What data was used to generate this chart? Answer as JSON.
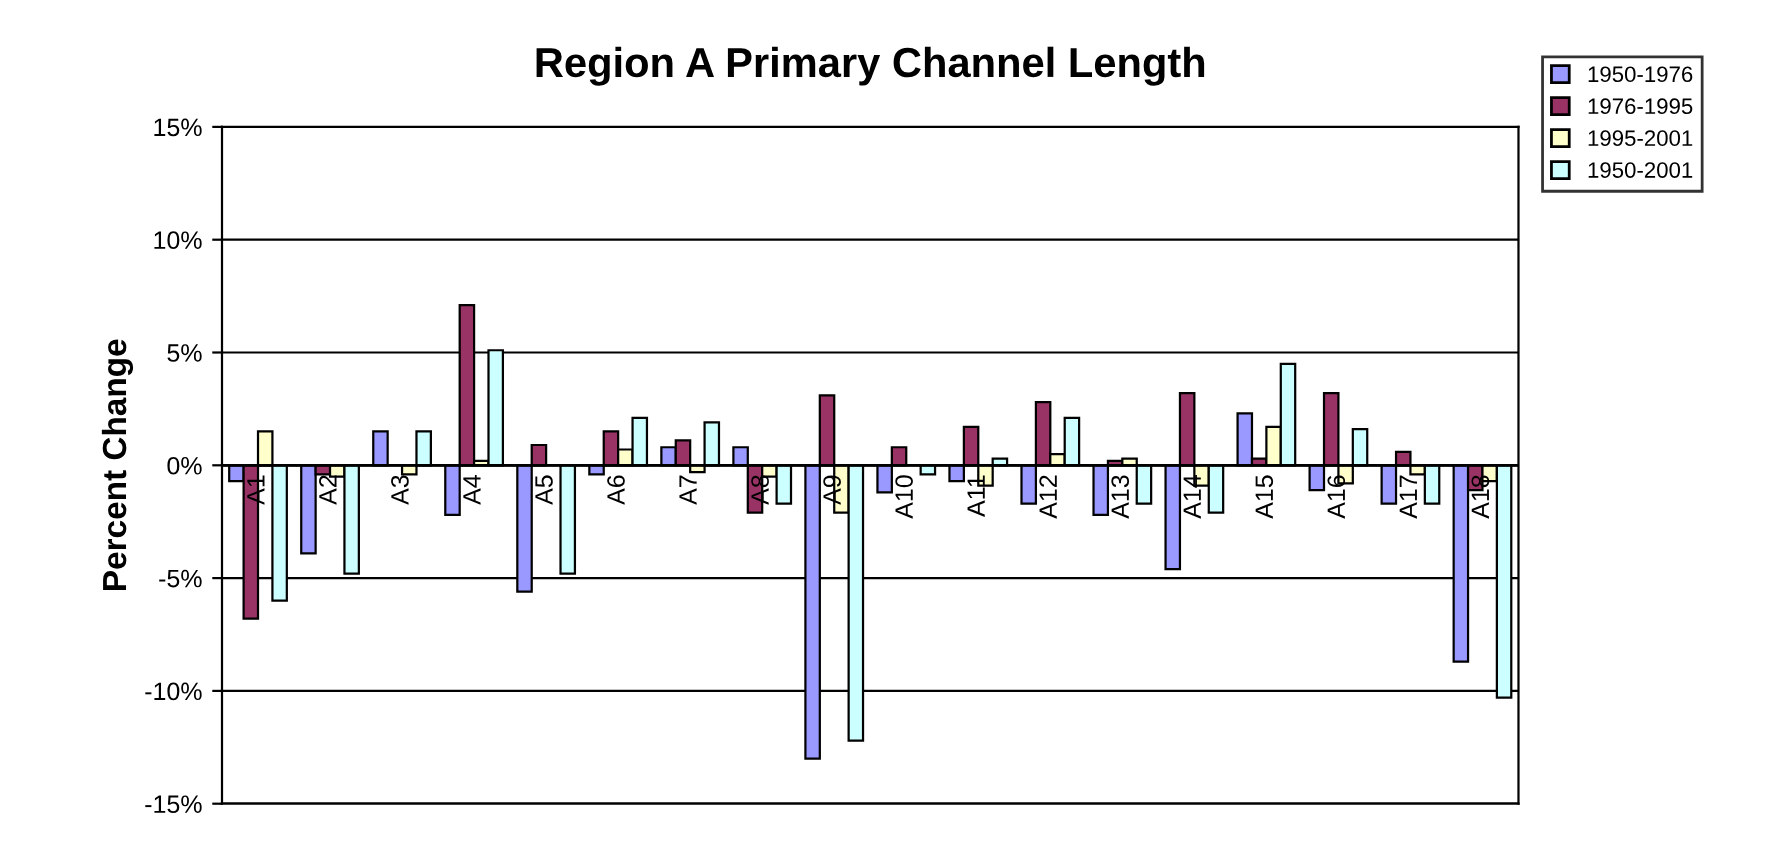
{
  "chart_data": {
    "type": "bar",
    "title": "Region A Primary Channel Length",
    "ylabel": "Percent Change",
    "categories": [
      "A1",
      "A2",
      "A3",
      "A4",
      "A5",
      "A6",
      "A7",
      "A8",
      "A9",
      "A10",
      "A11",
      "A12",
      "A13",
      "A14",
      "A15",
      "A16",
      "A17",
      "A18"
    ],
    "series": [
      {
        "name": "1950-1976",
        "color": "#9999ff",
        "values": [
          -0.7,
          -3.9,
          1.5,
          -2.2,
          -5.6,
          -0.4,
          0.8,
          0.8,
          -13.0,
          -1.2,
          -0.7,
          -1.7,
          -2.2,
          -4.6,
          2.3,
          -1.1,
          -1.7,
          -8.7
        ]
      },
      {
        "name": "1976-1995",
        "color": "#993366",
        "values": [
          -6.8,
          -0.4,
          null,
          7.1,
          0.9,
          1.5,
          1.1,
          -2.1,
          3.1,
          0.8,
          1.7,
          2.8,
          0.2,
          3.2,
          0.3,
          3.2,
          0.6,
          -1.1
        ]
      },
      {
        "name": "1995-2001",
        "color": "#ffffcc",
        "values": [
          1.5,
          -0.5,
          -0.4,
          0.2,
          null,
          0.7,
          -0.3,
          -0.5,
          -2.1,
          null,
          -0.9,
          0.5,
          0.3,
          -0.9,
          1.7,
          -0.8,
          -0.4,
          -0.7
        ]
      },
      {
        "name": "1950-2001",
        "color": "#ccffff",
        "values": [
          -6.0,
          -4.8,
          1.5,
          5.1,
          -4.8,
          2.1,
          1.9,
          -1.7,
          -12.2,
          -0.4,
          0.3,
          2.1,
          -1.7,
          -2.1,
          4.5,
          1.6,
          -1.7,
          -10.3
        ]
      }
    ],
    "ylim": [
      -15,
      15
    ],
    "yticks": [
      {
        "value": -15,
        "label": "-15%"
      },
      {
        "value": -10,
        "label": "-10%"
      },
      {
        "value": -5,
        "label": "-5%"
      },
      {
        "value": 0,
        "label": "0%"
      },
      {
        "value": 5,
        "label": "5%"
      },
      {
        "value": 10,
        "label": "10%"
      },
      {
        "value": 15,
        "label": "15%"
      }
    ],
    "grid": "y",
    "legend": "top right"
  }
}
